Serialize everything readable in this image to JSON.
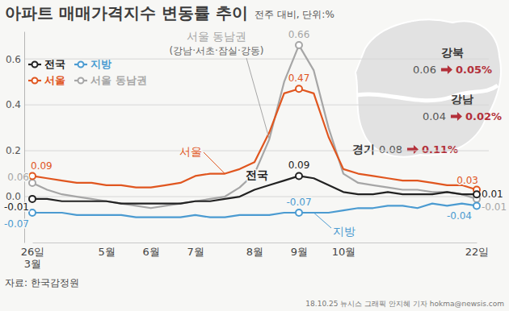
{
  "chart_data": {
    "type": "line",
    "title": "아파트 매매가격지수 변동률 추이",
    "subtitle": "전주 대비, 단위:%",
    "categories": [
      "26일\n3월",
      null,
      null,
      null,
      null,
      "5월",
      null,
      null,
      "6월",
      null,
      null,
      "7월",
      null,
      null,
      null,
      "8월",
      null,
      null,
      "9월",
      null,
      null,
      "10월",
      null,
      null,
      null,
      null,
      null,
      null,
      null,
      null,
      "22일"
    ],
    "ylim": [
      -0.2,
      0.72
    ],
    "yticks": [
      {
        "value": 0,
        "label": "0.0"
      },
      0.2,
      0.4,
      0.6
    ],
    "grid": true,
    "legend": "upper left",
    "data_labels": true,
    "marker": "circle",
    "series": [
      {
        "name": "전국",
        "color": "#222222",
        "values": [
          -0.01,
          -0.01,
          -0.02,
          -0.02,
          -0.02,
          -0.02,
          -0.03,
          -0.03,
          -0.03,
          -0.03,
          -0.03,
          -0.02,
          -0.02,
          -0.01,
          0.0,
          0.03,
          0.05,
          0.07,
          0.09,
          0.08,
          0.05,
          0.02,
          0.01,
          0.01,
          0.02,
          0.01,
          0.01,
          0.01,
          0.02,
          0.01,
          0.01
        ],
        "value_labels": [
          "-0.01",
          null,
          null,
          null,
          null,
          null,
          null,
          null,
          null,
          null,
          null,
          null,
          null,
          null,
          null,
          null,
          null,
          null,
          "0.09",
          null,
          null,
          null,
          null,
          null,
          null,
          null,
          null,
          null,
          null,
          null,
          "0.01"
        ]
      },
      {
        "name": "지방",
        "color": "#4b9bd1",
        "values": [
          -0.07,
          -0.07,
          -0.07,
          -0.08,
          -0.08,
          -0.08,
          -0.08,
          -0.09,
          -0.09,
          -0.09,
          -0.09,
          -0.08,
          -0.09,
          -0.09,
          -0.08,
          -0.08,
          -0.08,
          -0.07,
          -0.07,
          -0.07,
          -0.07,
          -0.06,
          -0.05,
          -0.05,
          -0.04,
          -0.04,
          -0.05,
          -0.03,
          -0.04,
          -0.03,
          -0.04
        ],
        "value_labels": [
          "-0.07",
          null,
          null,
          null,
          null,
          null,
          null,
          null,
          null,
          null,
          null,
          null,
          null,
          null,
          null,
          null,
          null,
          null,
          "-0.07",
          null,
          null,
          null,
          null,
          null,
          null,
          null,
          null,
          null,
          null,
          null,
          "-0.04"
        ]
      },
      {
        "name": "서울",
        "color": "#e0561f",
        "values": [
          0.09,
          0.08,
          0.07,
          0.06,
          0.06,
          0.05,
          0.05,
          0.04,
          0.04,
          0.05,
          0.06,
          0.09,
          0.1,
          0.1,
          0.12,
          0.15,
          0.28,
          0.45,
          0.47,
          0.45,
          0.26,
          0.12,
          0.1,
          0.09,
          0.08,
          0.07,
          0.07,
          0.06,
          0.05,
          0.05,
          0.03
        ],
        "value_labels": [
          "0.09",
          null,
          null,
          null,
          null,
          null,
          null,
          null,
          null,
          null,
          null,
          null,
          null,
          null,
          null,
          null,
          null,
          null,
          "0.47",
          null,
          null,
          null,
          null,
          null,
          null,
          null,
          null,
          null,
          null,
          null,
          "0.03"
        ]
      },
      {
        "name": "서울 동남권",
        "color": "#a6a6a6",
        "values": [
          0.06,
          0.03,
          0.01,
          0.0,
          -0.01,
          -0.02,
          -0.03,
          -0.04,
          -0.05,
          -0.04,
          -0.03,
          -0.02,
          -0.01,
          0.0,
          0.04,
          0.1,
          0.25,
          0.5,
          0.66,
          0.55,
          0.3,
          0.1,
          0.06,
          0.05,
          0.04,
          0.03,
          0.03,
          0.02,
          0.02,
          0.01,
          -0.01
        ],
        "value_labels": [
          "0.06",
          null,
          null,
          null,
          null,
          null,
          null,
          null,
          null,
          null,
          null,
          null,
          null,
          null,
          null,
          null,
          null,
          null,
          "0.66",
          null,
          null,
          null,
          null,
          null,
          null,
          null,
          null,
          null,
          null,
          null,
          "-0.01"
        ]
      }
    ],
    "annotations": [
      {
        "text": "(강남·서초·잠실·강동)"
      }
    ],
    "inset": [
      {
        "region": "강북",
        "from": 0.06,
        "to": {
          "value": 0.05,
          "label": "0.05%"
        }
      },
      {
        "region": "강남",
        "from": 0.04,
        "to": {
          "value": 0.02,
          "label": "0.02%"
        }
      },
      {
        "region": "경기",
        "from": 0.08,
        "to": {
          "value": 0.11,
          "label": "0.11%"
        }
      }
    ],
    "source": "자료: 한국감정원",
    "credit": "18.10.25 뉴시스 그래픽 안지혜 기자 hokma@newsis.com"
  }
}
